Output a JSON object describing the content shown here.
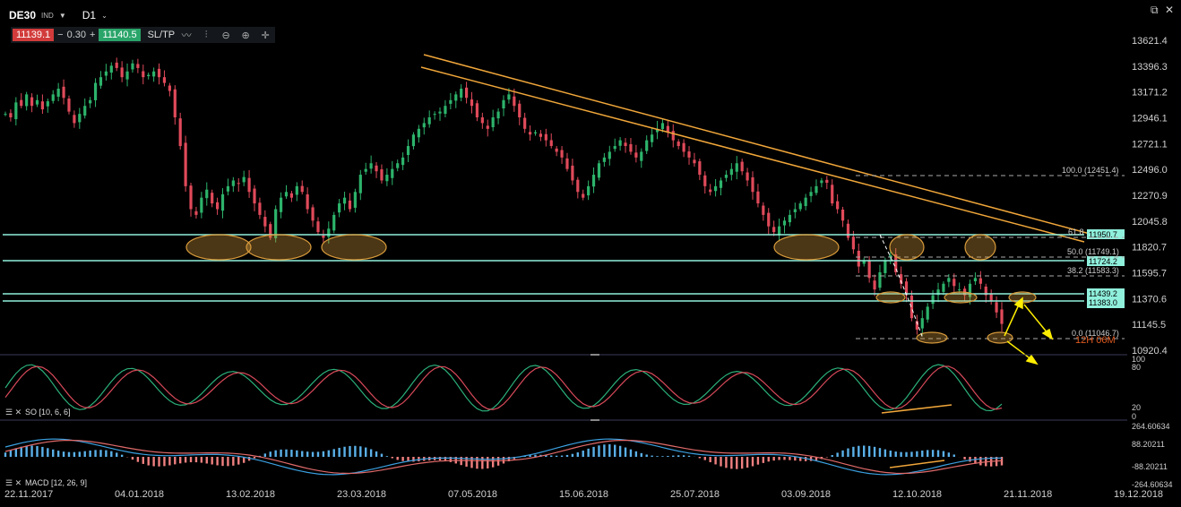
{
  "toolbar": {
    "symbol": "DE30",
    "symbol_type": "IND",
    "timeframe": "D1",
    "bid": "11139.1",
    "change": "0.30",
    "minus": "−",
    "plus": "+",
    "ask": "11140.5",
    "sltp": "SL/TP",
    "icons": [
      "line-chart-icon",
      "candles-icon",
      "zoom-out-icon",
      "zoom-in-icon",
      "crosshair-icon"
    ]
  },
  "window": {
    "restore": "⧉",
    "close": "✕"
  },
  "chart_data": {
    "type": "candlestick",
    "y_labels": [
      "13621.4",
      "13396.3",
      "13171.2",
      "12946.1",
      "12721.1",
      "12496.0",
      "12270.9",
      "12045.8",
      "11820.7",
      "11595.7",
      "11370.6",
      "11145.5",
      "10920.4"
    ],
    "y_range": [
      10900,
      13700
    ],
    "x_labels": [
      "22.11.2017",
      "04.01.2018",
      "13.02.2018",
      "23.03.2018",
      "07.05.2018",
      "15.06.2018",
      "25.07.2018",
      "03.09.2018",
      "12.10.2018",
      "21.11.2018",
      "19.12.2018"
    ],
    "closes": [
      12980,
      12950,
      13080,
      13050,
      13150,
      13050,
      13100,
      13020,
      13090,
      13150,
      13200,
      13120,
      13000,
      12900,
      12980,
      13050,
      13100,
      13250,
      13300,
      13350,
      13400,
      13380,
      13300,
      13350,
      13420,
      13380,
      13300,
      13320,
      13350,
      13300,
      13250,
      13180,
      12950,
      12700,
      12350,
      12150,
      12100,
      12250,
      12320,
      12200,
      12150,
      12280,
      12350,
      12400,
      12370,
      12430,
      12300,
      12200,
      12100,
      12000,
      11900,
      12150,
      12250,
      12300,
      12250,
      12350,
      12300,
      12150,
      12050,
      11950,
      11900,
      11980,
      12100,
      12200,
      12250,
      12150,
      12300,
      12450,
      12500,
      12550,
      12480,
      12400,
      12450,
      12500,
      12550,
      12600,
      12700,
      12800,
      12850,
      12900,
      12950,
      12980,
      13000,
      13050,
      13100,
      13150,
      13200,
      13120,
      13050,
      12950,
      12900,
      12850,
      12950,
      13000,
      13100,
      13150,
      13050,
      12950,
      12850,
      12800,
      12820,
      12780,
      12750,
      12700,
      12650,
      12600,
      12500,
      12400,
      12300,
      12250,
      12350,
      12450,
      12550,
      12600,
      12650,
      12700,
      12750,
      12700,
      12650,
      12600,
      12650,
      12750,
      12800,
      12850,
      12900,
      12820,
      12750,
      12700,
      12650,
      12600,
      12550,
      12450,
      12350,
      12300,
      12350,
      12400,
      12450,
      12500,
      12550,
      12480,
      12400,
      12300,
      12200,
      12100,
      12000,
      11950,
      12000,
      12050,
      12100,
      12150,
      12200,
      12250,
      12300,
      12350,
      12400,
      12380,
      12200,
      12150,
      12050,
      11900,
      11800,
      11650,
      11700,
      11550,
      11450,
      11600,
      11700,
      11750,
      11600,
      11500,
      11400,
      11200,
      11100,
      11200,
      11300,
      11400,
      11450,
      11500,
      11550,
      11480,
      11450,
      11400,
      11500,
      11550,
      11500,
      11400,
      11350,
      11250,
      11150
    ]
  },
  "levels": {
    "horizontal": [
      "11950.7",
      "11724.2",
      "11439.2",
      "11383.0"
    ],
    "fib": [
      {
        "label": "100.0 (12451.4)"
      },
      {
        "label": "61.8"
      },
      {
        "label": "50.0 (11749.1)"
      },
      {
        "label": "38.2 (11583.3)"
      },
      {
        "label": "0.0 (11046.7)"
      }
    ],
    "countdown": "12H 06M"
  },
  "stochastic": {
    "title": "SO [10, 6, 6]",
    "scale": [
      "100",
      "80",
      "20",
      "0"
    ]
  },
  "macd": {
    "title": "MACD [12, 26, 9]",
    "scale": [
      "264.60634",
      "88.20211",
      "-88.20211",
      "-264.60634"
    ]
  },
  "colors": {
    "bull": "#2db36b",
    "bear": "#e04a5a",
    "trend": "#f0a63a",
    "hline": "#8ff0dc",
    "ellipse": "#d79a3b",
    "arrow": "#ffee00",
    "macd_pos": "#5ab0e8",
    "macd_neg": "#f08080"
  }
}
